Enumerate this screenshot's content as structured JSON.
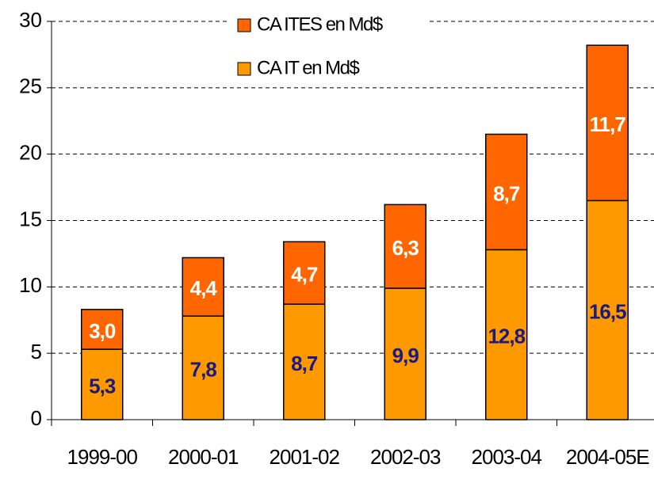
{
  "chart_data": {
    "type": "stacked_bar",
    "categories": [
      "1999-00",
      "2000-01",
      "2001-02",
      "2002-03",
      "2003-04",
      "2004-05E"
    ],
    "series": [
      {
        "name": "CA IT en Md$",
        "color": "#ff9900",
        "values": [
          5.3,
          7.8,
          8.7,
          9.9,
          12.8,
          16.5
        ],
        "value_labels": [
          "5,3",
          "7,8",
          "8,7",
          "9,9",
          "12,8",
          "16,5"
        ]
      },
      {
        "name": "CA ITES en Md$",
        "color": "#ff6600",
        "values": [
          3.0,
          4.4,
          4.7,
          6.3,
          8.7,
          11.7
        ],
        "value_labels": [
          "3,0",
          "4,4",
          "4,7",
          "6,3",
          "8,7",
          "11,7"
        ]
      }
    ],
    "ylim": [
      0,
      30
    ],
    "yticks": [
      0,
      5,
      10,
      15,
      20,
      25,
      30
    ],
    "grid": true
  }
}
